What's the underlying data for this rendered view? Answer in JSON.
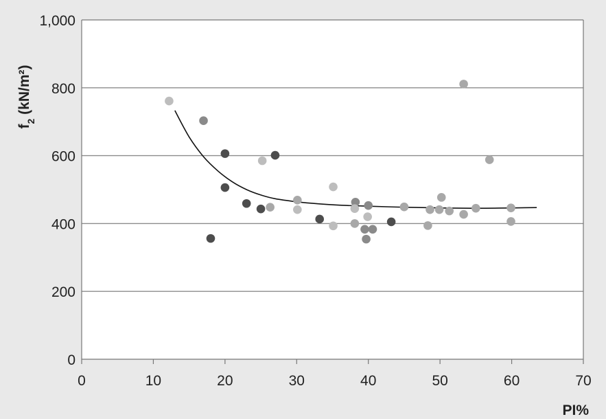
{
  "chart_data": {
    "type": "scatter",
    "xlabel": "PI%",
    "ylabel_main": "f",
    "ylabel_sub": "2",
    "ylabel_unit": " (kN/m²)",
    "xlim": [
      0,
      70
    ],
    "ylim": [
      0,
      1000
    ],
    "xticks": [
      0,
      10,
      20,
      30,
      40,
      50,
      60,
      70
    ],
    "xtick_labels": [
      "0",
      "10",
      "20",
      "30",
      "40",
      "50",
      "60",
      "70"
    ],
    "yticks": [
      0,
      200,
      400,
      600,
      800,
      1000
    ],
    "ytick_labels": [
      "0",
      "200",
      "400",
      "600",
      "800",
      "1,000"
    ],
    "grid": "horizontal",
    "legend": "none",
    "colors": {
      "background": "#e9e9e9",
      "plot_area": "#ffffff",
      "gridline": "#8c8c8c",
      "axis": "#777777",
      "trend": "#111111",
      "dark": "#4d4d4d",
      "mid": "#8a8a8a",
      "light": "#bdbdbd",
      "lighter": "#a8a8a8"
    },
    "series": [
      {
        "color_key": "dark",
        "points": [
          [
            18,
            356
          ],
          [
            20,
            606
          ],
          [
            20,
            506
          ],
          [
            23,
            459
          ],
          [
            25,
            443
          ],
          [
            27,
            601
          ],
          [
            33.2,
            413
          ],
          [
            43.2,
            405
          ]
        ]
      },
      {
        "color_key": "mid",
        "points": [
          [
            17,
            703
          ],
          [
            38.2,
            463
          ],
          [
            39.5,
            383
          ],
          [
            39.7,
            354
          ],
          [
            40,
            453
          ],
          [
            40.6,
            383
          ]
        ]
      },
      {
        "color_key": "light",
        "points": [
          [
            12.2,
            761
          ],
          [
            25.2,
            585
          ],
          [
            30.1,
            441
          ],
          [
            35.1,
            393
          ],
          [
            35.1,
            508
          ],
          [
            38.1,
            444
          ],
          [
            39.9,
            420
          ]
        ]
      },
      {
        "color_key": "lighter",
        "points": [
          [
            26.3,
            448
          ],
          [
            30.1,
            469
          ],
          [
            38.1,
            400
          ],
          [
            45,
            449
          ],
          [
            48.3,
            394
          ],
          [
            48.6,
            441
          ],
          [
            49.9,
            441
          ],
          [
            50.2,
            477
          ],
          [
            51.3,
            437
          ],
          [
            53.3,
            427
          ],
          [
            53.3,
            811
          ],
          [
            55,
            445
          ],
          [
            56.9,
            588
          ],
          [
            59.9,
            446
          ],
          [
            59.9,
            406
          ]
        ]
      }
    ],
    "trendline": {
      "type": "curve",
      "points": [
        [
          13,
          733
        ],
        [
          15,
          655
        ],
        [
          17,
          597
        ],
        [
          19,
          555
        ],
        [
          21,
          523
        ],
        [
          23,
          500
        ],
        [
          25,
          484
        ],
        [
          27,
          473
        ],
        [
          30,
          464
        ],
        [
          33,
          458
        ],
        [
          36,
          454
        ],
        [
          40,
          451
        ],
        [
          45,
          448
        ],
        [
          50,
          446
        ],
        [
          55,
          445
        ],
        [
          60,
          446
        ],
        [
          63.5,
          447
        ]
      ]
    }
  }
}
